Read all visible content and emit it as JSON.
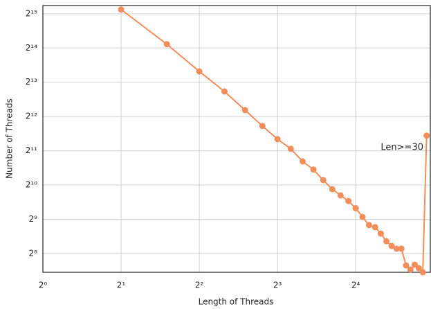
{
  "chart_data": {
    "type": "line",
    "xlabel": "Length of Threads",
    "ylabel": "Number of Threads",
    "annotation": "Len>=30",
    "x": [
      2,
      3,
      4,
      5,
      6,
      7,
      8,
      9,
      10,
      11,
      12,
      13,
      14,
      15,
      16,
      17,
      18,
      19,
      20,
      21,
      22,
      23,
      24,
      25,
      26,
      27,
      28,
      29,
      30
    ],
    "series": [
      {
        "name": "threads",
        "color": "#f28e5c",
        "values": [
          35700,
          17700,
          10200,
          6800,
          4660,
          3380,
          2590,
          2130,
          1650,
          1400,
          1130,
          940,
          830,
          740,
          640,
          536,
          455,
          436,
          383,
          328,
          298,
          282,
          282,
          201,
          185,
          204,
          190,
          175,
          2780
        ]
      }
    ],
    "xscale": "log",
    "yscale": "log",
    "grid": true,
    "xlim": [
      1,
      31
    ],
    "ylim": [
      175,
      38700
    ],
    "xticks": [
      {
        "value": 1,
        "label": "2⁰"
      },
      {
        "value": 2,
        "label": "2¹"
      },
      {
        "value": 4,
        "label": "2²"
      },
      {
        "value": 8,
        "label": "2³"
      },
      {
        "value": 16,
        "label": "2⁴"
      }
    ],
    "yticks": [
      {
        "value": 256,
        "label": "2⁸"
      },
      {
        "value": 512,
        "label": "2⁹"
      },
      {
        "value": 1024,
        "label": "2¹⁰"
      },
      {
        "value": 2048,
        "label": "2¹¹"
      },
      {
        "value": 4096,
        "label": "2¹²"
      },
      {
        "value": 8192,
        "label": "2¹³"
      },
      {
        "value": 16384,
        "label": "2¹⁴"
      },
      {
        "value": 32768,
        "label": "2¹⁵"
      }
    ]
  }
}
